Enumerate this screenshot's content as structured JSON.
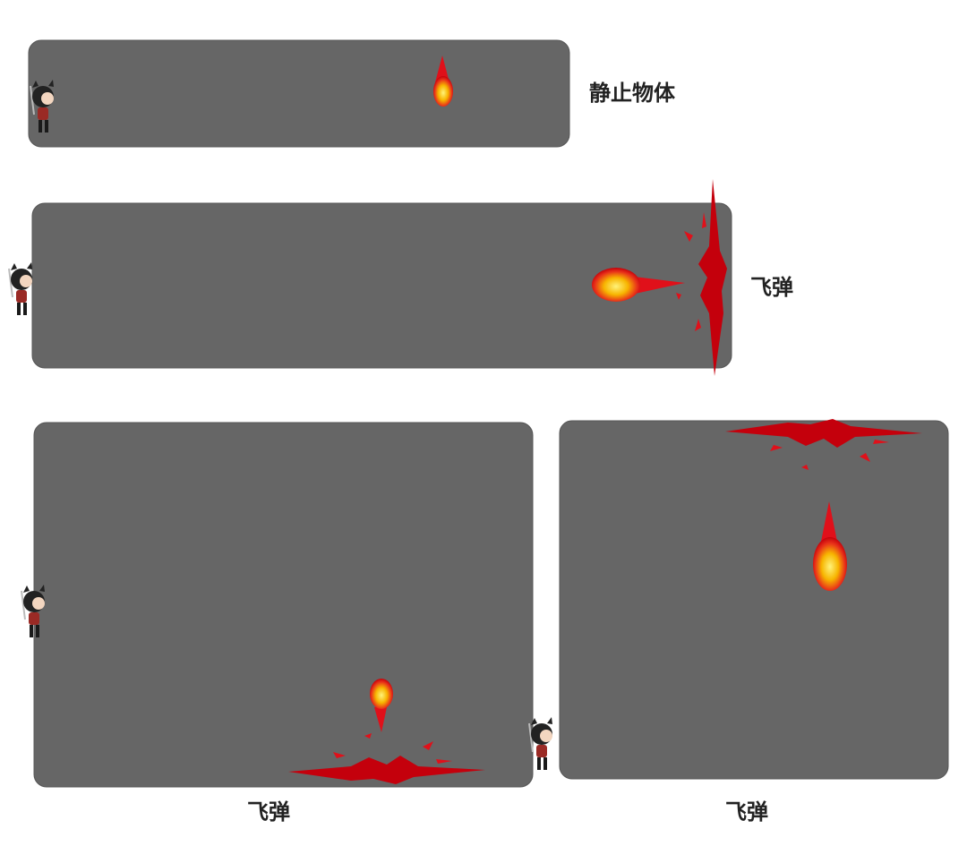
{
  "panels": [
    {
      "label": "静止物体"
    },
    {
      "label": "飞弹"
    },
    {
      "label": "飞弹"
    },
    {
      "label": "飞弹"
    }
  ]
}
